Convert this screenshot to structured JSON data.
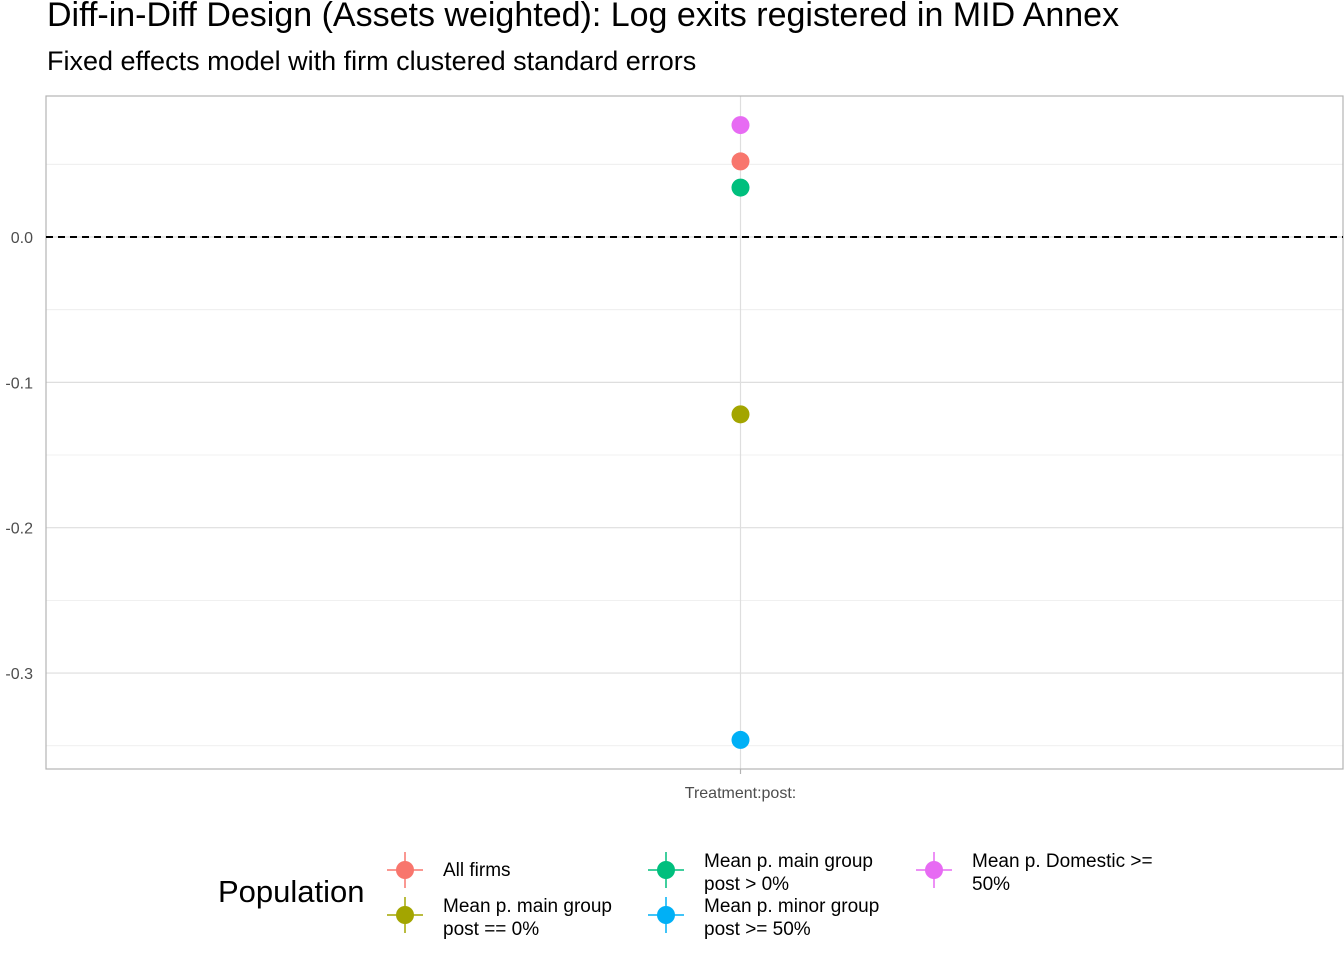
{
  "chart_data": {
    "type": "scatter",
    "title": "Diff-in-Diff Design (Assets weighted): Log exits registered in MID Annex",
    "subtitle": "Fixed effects model with firm clustered standard errors",
    "categories": [
      "Treatment:post:"
    ],
    "y_ticks": [
      "0.0",
      "-0.1",
      "-0.2",
      "-0.3"
    ],
    "y_tick_values": [
      0.0,
      -0.1,
      -0.2,
      -0.3
    ],
    "ylim": [
      -0.366,
      0.097
    ],
    "reference_line": 0.0,
    "grid": true,
    "legend_title": "Population",
    "legend_position": "bottom",
    "series": [
      {
        "name": "All firms",
        "label_lines": [
          "All firms"
        ],
        "color": "#F8766D",
        "value": 0.052
      },
      {
        "name": "Mean p. main group post == 0%",
        "label_lines": [
          "Mean p. main group",
          "post == 0%"
        ],
        "color": "#A3A500",
        "value": -0.122
      },
      {
        "name": "Mean p. main group post > 0%",
        "label_lines": [
          "Mean p. main group",
          "post > 0%"
        ],
        "color": "#00BF7D",
        "value": 0.034
      },
      {
        "name": "Mean p. minor group post >= 50%",
        "label_lines": [
          "Mean p. minor group",
          "post >= 50%"
        ],
        "color": "#00B0F6",
        "value": -0.346
      },
      {
        "name": "Mean p. Domestic >= 50%",
        "label_lines": [
          "Mean p. Domestic >=",
          "50%"
        ],
        "color": "#E76BF3",
        "value": 0.077
      }
    ]
  }
}
